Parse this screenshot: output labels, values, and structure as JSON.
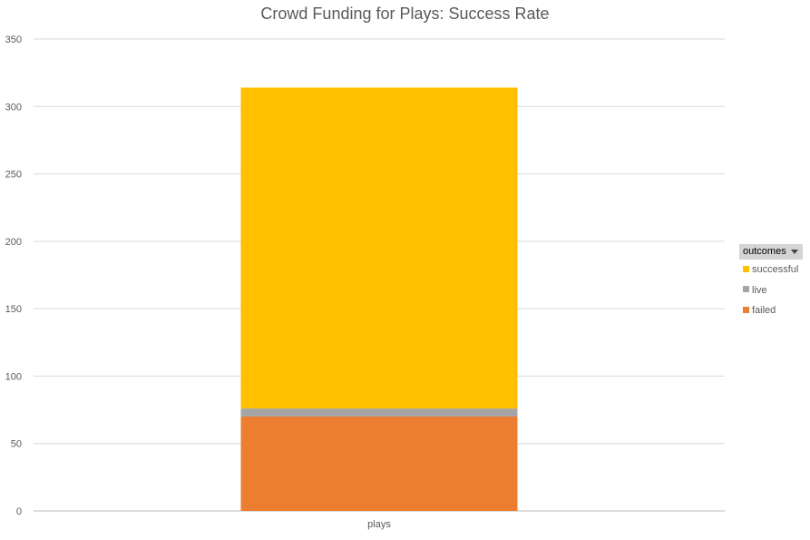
{
  "chart_data": {
    "type": "bar",
    "stacked": true,
    "title": "Crowd Funding for Plays: Success Rate",
    "categories": [
      "plays"
    ],
    "series": [
      {
        "name": "failed",
        "values": [
          70
        ],
        "color": "#ED7D31"
      },
      {
        "name": "live",
        "values": [
          6
        ],
        "color": "#A5A5A5"
      },
      {
        "name": "successful",
        "values": [
          238
        ],
        "color": "#FFC000"
      }
    ],
    "ylim": [
      0,
      350
    ],
    "yticks": [
      0,
      50,
      100,
      150,
      200,
      250,
      300,
      350
    ],
    "grid": true,
    "legend_position": "right",
    "legend_title": "outcomes",
    "legend_order": [
      "successful",
      "live",
      "failed"
    ]
  }
}
